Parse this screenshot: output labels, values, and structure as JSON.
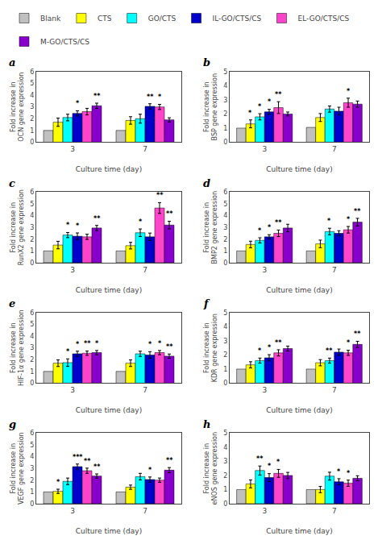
{
  "chart_data": [
    {
      "type": "bar",
      "title": "a",
      "xlabel": "Culture time (day)",
      "ylabel": "Fold increase in OCN gene expression",
      "categories": [
        "3",
        "7"
      ],
      "ylim": [
        0,
        6
      ],
      "yticks": [
        0,
        1,
        2,
        3,
        4,
        5,
        6
      ],
      "grid": false,
      "legend": "top",
      "series": [
        {
          "name": "Blank",
          "color": "#c0c0c0",
          "values": [
            1.0,
            1.0
          ],
          "errors": [
            0.0,
            0.0
          ]
        },
        {
          "name": "CTS",
          "color": "#ffff00",
          "values": [
            1.7,
            1.85
          ],
          "errors": [
            0.35,
            0.32
          ]
        },
        {
          "name": "GO/CTS",
          "color": "#00ffff",
          "values": [
            2.1,
            2.0
          ],
          "errors": [
            0.28,
            0.38
          ]
        },
        {
          "name": "IL-GO/CTS/CS",
          "color": "#0000cc",
          "values": [
            2.45,
            3.05
          ],
          "errors": [
            0.22,
            0.22
          ]
        },
        {
          "name": "EL-GO/CTS/CS",
          "color": "#ff44cc",
          "values": [
            2.6,
            3.0
          ],
          "errors": [
            0.28,
            0.22
          ]
        },
        {
          "name": "M-GO/CTS/CS",
          "color": "#8800cc",
          "values": [
            3.1,
            1.9
          ],
          "errors": [
            0.22,
            0.18
          ]
        }
      ],
      "annotations": [
        {
          "series": "IL-GO/CTS/CS",
          "category": "3",
          "text": "*"
        },
        {
          "series": "M-GO/CTS/CS",
          "category": "3",
          "text": "**"
        },
        {
          "series": "IL-GO/CTS/CS",
          "category": "7",
          "text": "**"
        },
        {
          "series": "EL-GO/CTS/CS",
          "category": "7",
          "text": "*"
        }
      ]
    },
    {
      "type": "bar",
      "title": "b",
      "xlabel": "Culture time (day)",
      "ylabel": "Fold increase in BSP gene expression",
      "categories": [
        "3",
        "7"
      ],
      "ylim": [
        0,
        5
      ],
      "yticks": [
        0,
        1,
        2,
        3,
        4,
        5
      ],
      "grid": false,
      "legend": "top",
      "series": [
        {
          "name": "Blank",
          "color": "#c0c0c0",
          "values": [
            1.0,
            1.05
          ],
          "errors": [
            0.0,
            0.0
          ]
        },
        {
          "name": "CTS",
          "color": "#ffff00",
          "values": [
            1.3,
            1.75
          ],
          "errors": [
            0.28,
            0.28
          ]
        },
        {
          "name": "GO/CTS",
          "color": "#00ffff",
          "values": [
            1.8,
            2.35
          ],
          "errors": [
            0.22,
            0.22
          ]
        },
        {
          "name": "IL-GO/CTS/CS",
          "color": "#0000cc",
          "values": [
            2.15,
            2.2
          ],
          "errors": [
            0.18,
            0.28
          ]
        },
        {
          "name": "EL-GO/CTS/CS",
          "color": "#ff44cc",
          "values": [
            2.45,
            2.8
          ],
          "errors": [
            0.42,
            0.32
          ]
        },
        {
          "name": "M-GO/CTS/CS",
          "color": "#8800cc",
          "values": [
            2.0,
            2.7
          ],
          "errors": [
            0.14,
            0.22
          ]
        }
      ],
      "annotations": [
        {
          "series": "CTS",
          "category": "3",
          "text": "*"
        },
        {
          "series": "GO/CTS",
          "category": "3",
          "text": "*"
        },
        {
          "series": "IL-GO/CTS/CS",
          "category": "3",
          "text": "*"
        },
        {
          "series": "EL-GO/CTS/CS",
          "category": "3",
          "text": "**"
        },
        {
          "series": "EL-GO/CTS/CS",
          "category": "7",
          "text": "*"
        }
      ]
    },
    {
      "type": "bar",
      "title": "c",
      "xlabel": "Culture time (day)",
      "ylabel": "Fold increase in RunX2 gene expression",
      "categories": [
        "3",
        "7"
      ],
      "ylim": [
        0,
        6
      ],
      "yticks": [
        0,
        1,
        2,
        3,
        4,
        5,
        6
      ],
      "grid": false,
      "legend": "top",
      "series": [
        {
          "name": "Blank",
          "color": "#c0c0c0",
          "values": [
            1.0,
            1.0
          ],
          "errors": [
            0.0,
            0.0
          ]
        },
        {
          "name": "CTS",
          "color": "#ffff00",
          "values": [
            1.5,
            1.45
          ],
          "errors": [
            0.32,
            0.28
          ]
        },
        {
          "name": "GO/CTS",
          "color": "#00ffff",
          "values": [
            2.35,
            2.55
          ],
          "errors": [
            0.22,
            0.32
          ]
        },
        {
          "name": "IL-GO/CTS/CS",
          "color": "#0000cc",
          "values": [
            2.25,
            2.2
          ],
          "errors": [
            0.28,
            0.32
          ]
        },
        {
          "name": "EL-GO/CTS/CS",
          "color": "#ff44cc",
          "values": [
            2.2,
            4.65
          ],
          "errors": [
            0.22,
            0.46
          ]
        },
        {
          "name": "M-GO/CTS/CS",
          "color": "#8800cc",
          "values": [
            2.95,
            3.2
          ],
          "errors": [
            0.22,
            0.32
          ]
        }
      ],
      "annotations": [
        {
          "series": "GO/CTS",
          "category": "3",
          "text": "*"
        },
        {
          "series": "IL-GO/CTS/CS",
          "category": "3",
          "text": "*"
        },
        {
          "series": "M-GO/CTS/CS",
          "category": "3",
          "text": "**"
        },
        {
          "series": "GO/CTS",
          "category": "7",
          "text": "*"
        },
        {
          "series": "EL-GO/CTS/CS",
          "category": "7",
          "text": "**"
        },
        {
          "series": "M-GO/CTS/CS",
          "category": "7",
          "text": "**"
        }
      ]
    },
    {
      "type": "bar",
      "title": "d",
      "xlabel": "Culture time (day)",
      "ylabel": "Fold increase in BMP2 gene expression",
      "categories": [
        "3",
        "7"
      ],
      "ylim": [
        0,
        6
      ],
      "yticks": [
        0,
        1,
        2,
        3,
        4,
        5,
        6
      ],
      "grid": false,
      "legend": "top",
      "series": [
        {
          "name": "Blank",
          "color": "#c0c0c0",
          "values": [
            1.0,
            1.0
          ],
          "errors": [
            0.0,
            0.0
          ]
        },
        {
          "name": "CTS",
          "color": "#ffff00",
          "values": [
            1.55,
            1.6
          ],
          "errors": [
            0.28,
            0.32
          ]
        },
        {
          "name": "GO/CTS",
          "color": "#00ffff",
          "values": [
            1.9,
            2.65
          ],
          "errors": [
            0.22,
            0.28
          ]
        },
        {
          "name": "IL-GO/CTS/CS",
          "color": "#0000cc",
          "values": [
            2.2,
            2.5
          ],
          "errors": [
            0.18,
            0.22
          ]
        },
        {
          "name": "EL-GO/CTS/CS",
          "color": "#ff44cc",
          "values": [
            2.5,
            2.8
          ],
          "errors": [
            0.28,
            0.28
          ]
        },
        {
          "name": "M-GO/CTS/CS",
          "color": "#8800cc",
          "values": [
            2.95,
            3.45
          ],
          "errors": [
            0.32,
            0.32
          ]
        }
      ],
      "annotations": [
        {
          "series": "GO/CTS",
          "category": "3",
          "text": "*"
        },
        {
          "series": "IL-GO/CTS/CS",
          "category": "3",
          "text": "*"
        },
        {
          "series": "EL-GO/CTS/CS",
          "category": "3",
          "text": "**"
        },
        {
          "series": "GO/CTS",
          "category": "7",
          "text": "*"
        },
        {
          "series": "EL-GO/CTS/CS",
          "category": "7",
          "text": "*"
        },
        {
          "series": "M-GO/CTS/CS",
          "category": "7",
          "text": "**"
        }
      ]
    },
    {
      "type": "bar",
      "title": "e",
      "xlabel": "Culture time (day)",
      "ylabel": "Fold increase in HIF-1α gene expression",
      "categories": [
        "3",
        "7"
      ],
      "ylim": [
        0,
        6
      ],
      "yticks": [
        0,
        1,
        2,
        3,
        4,
        5,
        6
      ],
      "grid": false,
      "legend": "top",
      "series": [
        {
          "name": "Blank",
          "color": "#c0c0c0",
          "values": [
            1.0,
            1.0
          ],
          "errors": [
            0.0,
            0.0
          ]
        },
        {
          "name": "CTS",
          "color": "#ffff00",
          "values": [
            1.7,
            1.7
          ],
          "errors": [
            0.28,
            0.28
          ]
        },
        {
          "name": "GO/CTS",
          "color": "#00ffff",
          "values": [
            1.75,
            2.5
          ],
          "errors": [
            0.32,
            0.22
          ]
        },
        {
          "name": "IL-GO/CTS/CS",
          "color": "#0000cc",
          "values": [
            2.5,
            2.4
          ],
          "errors": [
            0.22,
            0.28
          ]
        },
        {
          "name": "EL-GO/CTS/CS",
          "color": "#ff44cc",
          "values": [
            2.55,
            2.6
          ],
          "errors": [
            0.18,
            0.18
          ]
        },
        {
          "name": "M-GO/CTS/CS",
          "color": "#8800cc",
          "values": [
            2.6,
            2.3
          ],
          "errors": [
            0.18,
            0.18
          ]
        }
      ],
      "annotations": [
        {
          "series": "GO/CTS",
          "category": "3",
          "text": "*"
        },
        {
          "series": "IL-GO/CTS/CS",
          "category": "3",
          "text": "*"
        },
        {
          "series": "EL-GO/CTS/CS",
          "category": "3",
          "text": "**"
        },
        {
          "series": "M-GO/CTS/CS",
          "category": "3",
          "text": "*"
        },
        {
          "series": "IL-GO/CTS/CS",
          "category": "7",
          "text": "*"
        },
        {
          "series": "EL-GO/CTS/CS",
          "category": "7",
          "text": "*"
        },
        {
          "series": "M-GO/CTS/CS",
          "category": "7",
          "text": "**"
        }
      ]
    },
    {
      "type": "bar",
      "title": "f",
      "xlabel": "Culture time (day)",
      "ylabel": "Fold increase in KDR gene expression",
      "categories": [
        "3",
        "7"
      ],
      "ylim": [
        0,
        5
      ],
      "yticks": [
        0,
        1,
        2,
        3,
        4,
        5
      ],
      "grid": false,
      "legend": "top",
      "series": [
        {
          "name": "Blank",
          "color": "#c0c0c0",
          "values": [
            1.0,
            1.0
          ],
          "errors": [
            0.0,
            0.0
          ]
        },
        {
          "name": "CTS",
          "color": "#ffff00",
          "values": [
            1.3,
            1.45
          ],
          "errors": [
            0.22,
            0.22
          ]
        },
        {
          "name": "GO/CTS",
          "color": "#00ffff",
          "values": [
            1.6,
            1.6
          ],
          "errors": [
            0.18,
            0.18
          ]
        },
        {
          "name": "IL-GO/CTS/CS",
          "color": "#0000cc",
          "values": [
            1.8,
            2.2
          ],
          "errors": [
            0.22,
            0.22
          ]
        },
        {
          "name": "EL-GO/CTS/CS",
          "color": "#ff44cc",
          "values": [
            2.15,
            2.15
          ],
          "errors": [
            0.22,
            0.18
          ]
        },
        {
          "name": "M-GO/CTS/CS",
          "color": "#8800cc",
          "values": [
            2.45,
            2.75
          ],
          "errors": [
            0.18,
            0.22
          ]
        }
      ],
      "annotations": [
        {
          "series": "GO/CTS",
          "category": "3",
          "text": "*"
        },
        {
          "series": "IL-GO/CTS/CS",
          "category": "3",
          "text": "*"
        },
        {
          "series": "EL-GO/CTS/CS",
          "category": "3",
          "text": "**"
        },
        {
          "series": "GO/CTS",
          "category": "7",
          "text": "**"
        },
        {
          "series": "EL-GO/CTS/CS",
          "category": "7",
          "text": "*"
        },
        {
          "series": "M-GO/CTS/CS",
          "category": "7",
          "text": "**"
        }
      ]
    },
    {
      "type": "bar",
      "title": "g",
      "xlabel": "Culture time (day)",
      "ylabel": "Fold increase in VEGF gene expression",
      "categories": [
        "3",
        "7"
      ],
      "ylim": [
        0,
        6
      ],
      "yticks": [
        0,
        1,
        2,
        3,
        4,
        5,
        6
      ],
      "grid": false,
      "legend": "top",
      "series": [
        {
          "name": "Blank",
          "color": "#c0c0c0",
          "values": [
            1.0,
            1.0
          ],
          "errors": [
            0.0,
            0.0
          ]
        },
        {
          "name": "CTS",
          "color": "#ffff00",
          "values": [
            1.05,
            1.4
          ],
          "errors": [
            0.18,
            0.18
          ]
        },
        {
          "name": "GO/CTS",
          "color": "#00ffff",
          "values": [
            1.9,
            2.3
          ],
          "errors": [
            0.28,
            0.28
          ]
        },
        {
          "name": "IL-GO/CTS/CS",
          "color": "#0000cc",
          "values": [
            3.15,
            2.05
          ],
          "errors": [
            0.22,
            0.22
          ]
        },
        {
          "name": "EL-GO/CTS/CS",
          "color": "#ff44cc",
          "values": [
            2.8,
            2.0
          ],
          "errors": [
            0.22,
            0.18
          ]
        },
        {
          "name": "M-GO/CTS/CS",
          "color": "#8800cc",
          "values": [
            2.35,
            2.85
          ],
          "errors": [
            0.18,
            0.22
          ]
        }
      ],
      "annotations": [
        {
          "series": "CTS",
          "category": "3",
          "text": "*"
        },
        {
          "series": "IL-GO/CTS/CS",
          "category": "3",
          "text": "***"
        },
        {
          "series": "EL-GO/CTS/CS",
          "category": "3",
          "text": "**"
        },
        {
          "series": "M-GO/CTS/CS",
          "category": "3",
          "text": "**"
        },
        {
          "series": "IL-GO/CTS/CS",
          "category": "7",
          "text": "*"
        },
        {
          "series": "M-GO/CTS/CS",
          "category": "7",
          "text": "**"
        }
      ]
    },
    {
      "type": "bar",
      "title": "h",
      "xlabel": "Culture time (day)",
      "ylabel": "Fold increase in eNOS gene expression",
      "categories": [
        "3",
        "7"
      ],
      "ylim": [
        0,
        5
      ],
      "yticks": [
        0,
        1,
        2,
        3,
        4,
        5
      ],
      "grid": false,
      "legend": "top",
      "series": [
        {
          "name": "Blank",
          "color": "#c0c0c0",
          "values": [
            1.0,
            1.0
          ],
          "errors": [
            0.0,
            0.0
          ]
        },
        {
          "name": "CTS",
          "color": "#ffff00",
          "values": [
            1.4,
            1.0
          ],
          "errors": [
            0.28,
            0.22
          ]
        },
        {
          "name": "GO/CTS",
          "color": "#00ffff",
          "values": [
            2.35,
            1.95
          ],
          "errors": [
            0.32,
            0.28
          ]
        },
        {
          "name": "IL-GO/CTS/CS",
          "color": "#0000cc",
          "values": [
            1.85,
            1.55
          ],
          "errors": [
            0.28,
            0.22
          ]
        },
        {
          "name": "EL-GO/CTS/CS",
          "color": "#ff44cc",
          "values": [
            2.15,
            1.45
          ],
          "errors": [
            0.28,
            0.22
          ]
        },
        {
          "name": "M-GO/CTS/CS",
          "color": "#8800cc",
          "values": [
            2.0,
            1.8
          ],
          "errors": [
            0.22,
            0.18
          ]
        }
      ],
      "annotations": [
        {
          "series": "GO/CTS",
          "category": "3",
          "text": "**"
        },
        {
          "series": "IL-GO/CTS/CS",
          "category": "3",
          "text": "*"
        },
        {
          "series": "EL-GO/CTS/CS",
          "category": "3",
          "text": "*"
        },
        {
          "series": "IL-GO/CTS/CS",
          "category": "7",
          "text": "*"
        },
        {
          "series": "EL-GO/CTS/CS",
          "category": "7",
          "text": "*"
        }
      ]
    }
  ]
}
